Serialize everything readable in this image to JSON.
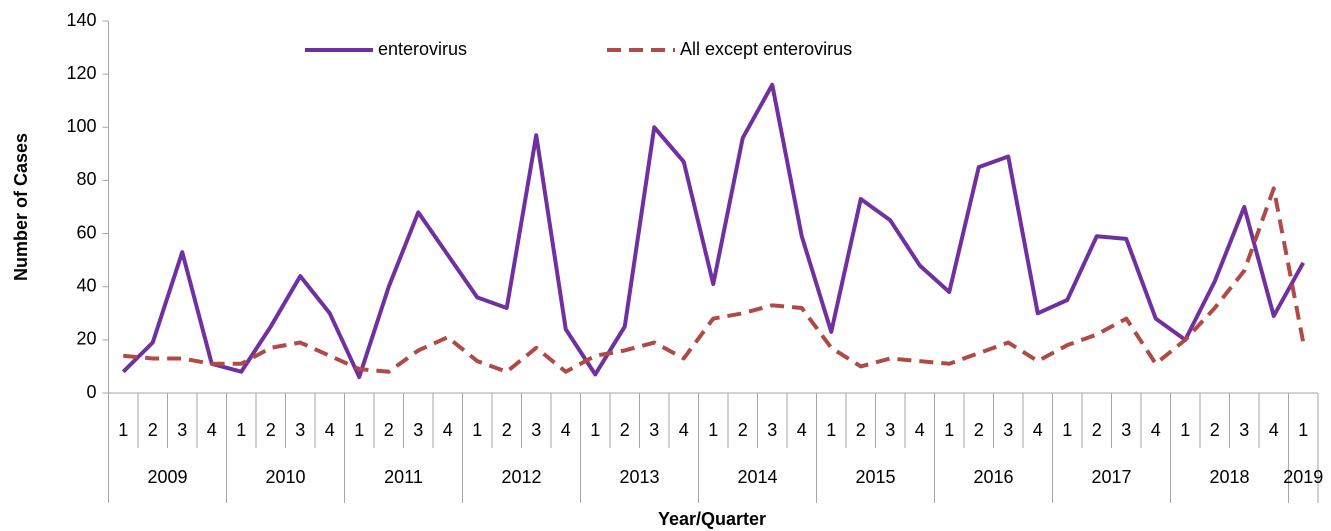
{
  "chart_data": {
    "type": "line",
    "y_axis_label": "Number of Cases",
    "x_axis_label": "Year/Quarter",
    "categories": [
      "1",
      "2",
      "3",
      "4",
      "1",
      "2",
      "3",
      "4",
      "1",
      "2",
      "3",
      "4",
      "1",
      "2",
      "3",
      "4",
      "1",
      "2",
      "3",
      "4",
      "1",
      "2",
      "3",
      "4",
      "1",
      "2",
      "3",
      "4",
      "1",
      "2",
      "3",
      "4",
      "1",
      "2",
      "3",
      "4",
      "1",
      "2",
      "3",
      "4",
      "1"
    ],
    "x_groups": [
      "2009",
      "2010",
      "2011",
      "2012",
      "2013",
      "2014",
      "2015",
      "2016",
      "2017",
      "2018",
      "2019"
    ],
    "series": [
      {
        "name": "enterovirus",
        "color": "#7030a0",
        "style": "solid",
        "values": [
          8,
          19,
          53,
          11,
          8,
          25,
          44,
          30,
          6,
          40,
          68,
          52,
          36,
          32,
          97,
          24,
          7,
          25,
          100,
          87,
          41,
          96,
          116,
          59,
          23,
          73,
          65,
          48,
          38,
          85,
          89,
          30,
          35,
          59,
          58,
          28,
          20,
          42,
          70,
          29,
          49
        ]
      },
      {
        "name": "All except enterovirus",
        "color": "#b04a45",
        "style": "dashed",
        "values": [
          14,
          13,
          13,
          11,
          11,
          17,
          19,
          14,
          9,
          8,
          16,
          21,
          12,
          8,
          17,
          8,
          14,
          16,
          19,
          13,
          28,
          30,
          33,
          32,
          17,
          10,
          13,
          12,
          11,
          15,
          19,
          12,
          18,
          22,
          28,
          11,
          20,
          32,
          46,
          77,
          19
        ]
      }
    ],
    "ylim": [
      0,
      140
    ],
    "yticks": [
      0,
      20,
      40,
      60,
      80,
      100,
      120,
      140
    ],
    "legend": "top"
  }
}
